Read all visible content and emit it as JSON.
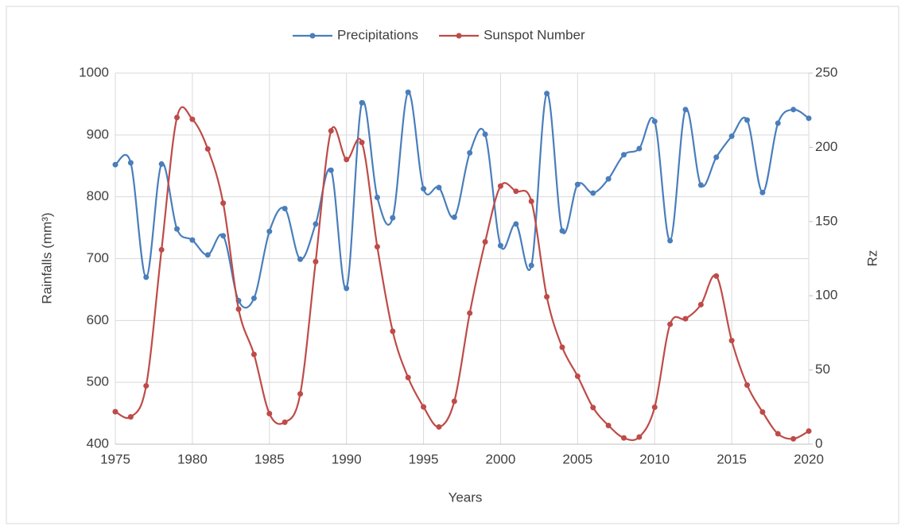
{
  "chart_data": {
    "type": "line",
    "x": [
      1975,
      1976,
      1977,
      1978,
      1979,
      1980,
      1981,
      1982,
      1983,
      1984,
      1985,
      1986,
      1987,
      1988,
      1989,
      1990,
      1991,
      1992,
      1993,
      1994,
      1995,
      1996,
      1997,
      1998,
      1999,
      2000,
      2001,
      2002,
      2003,
      2004,
      2005,
      2006,
      2007,
      2008,
      2009,
      2010,
      2011,
      2012,
      2013,
      2014,
      2015,
      2016,
      2017,
      2018,
      2019,
      2020
    ],
    "series": [
      {
        "name": "Precipitations",
        "color": "#4a7ebb",
        "axis": "y",
        "values": [
          852,
          855,
          670,
          853,
          748,
          730,
          706,
          737,
          632,
          636,
          744,
          781,
          699,
          756,
          843,
          652,
          952,
          799,
          766,
          969,
          813,
          815,
          767,
          871,
          901,
          721,
          756,
          689,
          967,
          745,
          820,
          806,
          829,
          868,
          878,
          922,
          729,
          941,
          819,
          864,
          898,
          924,
          807,
          919,
          941,
          927
        ]
      },
      {
        "name": "Sunspot Number",
        "color": "#be4b48",
        "axis": "y2",
        "values": [
          21.9,
          18.4,
          39.3,
          131.0,
          220.1,
          218.9,
          198.9,
          162.4,
          91.0,
          60.5,
          20.6,
          14.8,
          33.9,
          123.0,
          211.1,
          191.8,
          203.3,
          133.0,
          76.1,
          44.9,
          25.1,
          11.6,
          28.9,
          88.3,
          136.3,
          173.9,
          170.4,
          163.6,
          99.3,
          65.3,
          45.8,
          24.7,
          12.6,
          4.2,
          4.8,
          24.9,
          80.8,
          84.5,
          94.0,
          113.3,
          69.8,
          39.8,
          21.7,
          7.0,
          3.6,
          8.8
        ]
      }
    ],
    "xlabel": "Years",
    "ylabel": "Rainfalls (mm³)",
    "y2label": "Rz",
    "xlim": [
      1975,
      2020
    ],
    "xticks": [
      1975,
      1980,
      1985,
      1990,
      1995,
      2000,
      2005,
      2010,
      2015,
      2020
    ],
    "ylim": [
      400,
      1000
    ],
    "yticks": [
      400,
      500,
      600,
      700,
      800,
      900,
      1000
    ],
    "y2lim": [
      0,
      250
    ],
    "y2ticks": [
      0,
      50,
      100,
      150,
      200,
      250
    ],
    "grid": true,
    "legend": "top"
  }
}
